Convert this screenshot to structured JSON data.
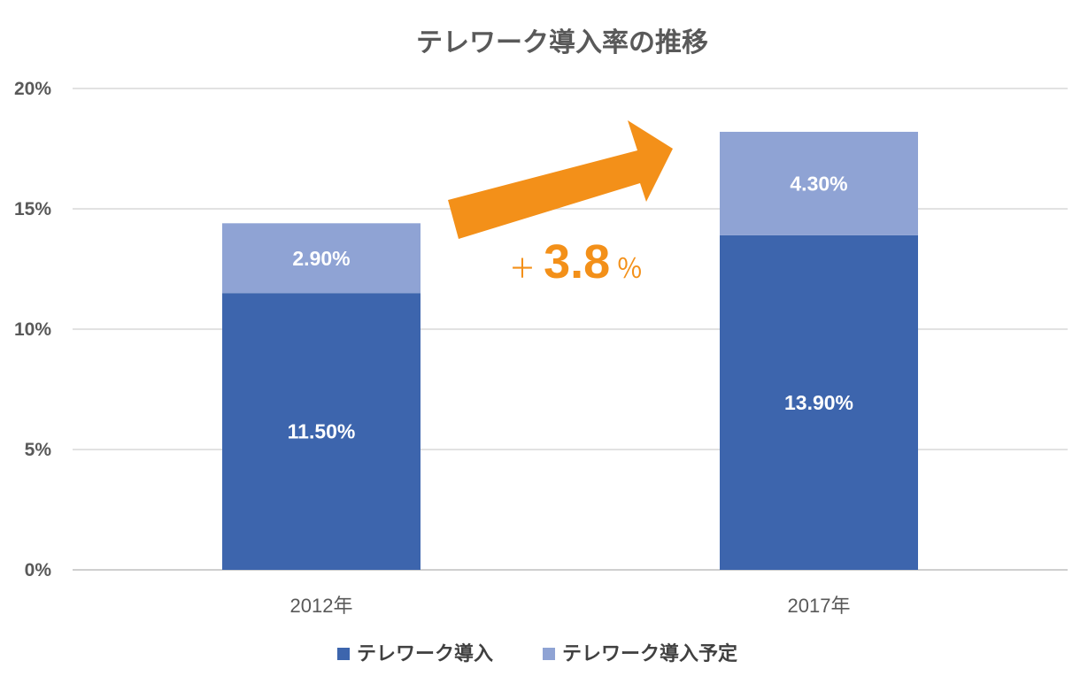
{
  "chart_data": {
    "type": "bar",
    "stacked": true,
    "title": "テレワーク導入率の推移",
    "categories": [
      "2012年",
      "2017年"
    ],
    "series": [
      {
        "name": "テレワーク導入",
        "values": [
          11.5,
          13.9
        ],
        "labels": [
          "11.50%",
          "13.90%"
        ],
        "color": "#3d65ad"
      },
      {
        "name": "テレワーク導入予定",
        "values": [
          2.9,
          4.3
        ],
        "labels": [
          "2.90%",
          "4.30%"
        ],
        "color": "#8fa3d4"
      }
    ],
    "ylim": [
      0,
      20
    ],
    "yticks": [
      0,
      5,
      10,
      15,
      20
    ],
    "ytick_labels": [
      "0%",
      "5%",
      "10%",
      "15%",
      "20%"
    ],
    "grid": true,
    "legend_position": "bottom",
    "annotation": {
      "plus": "＋",
      "value": "3.8",
      "unit": "％",
      "arrow_color": "#f39019"
    }
  }
}
